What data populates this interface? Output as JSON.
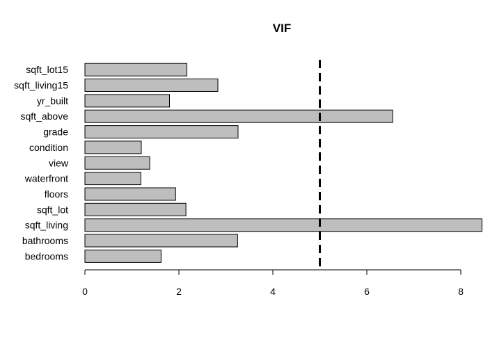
{
  "chart_data": {
    "type": "bar",
    "orientation": "horizontal",
    "title": "VIF",
    "xlabel": "",
    "ylabel": "",
    "categories": [
      "bedrooms",
      "bathrooms",
      "sqft_living",
      "sqft_lot",
      "floors",
      "waterfront",
      "view",
      "condition",
      "grade",
      "sqft_above",
      "yr_built",
      "sqft_living15",
      "sqft_lot15"
    ],
    "values": [
      1.62,
      3.25,
      8.45,
      2.15,
      1.93,
      1.19,
      1.38,
      1.2,
      3.26,
      6.55,
      1.8,
      2.83,
      2.17
    ],
    "xlim": [
      0,
      8.45
    ],
    "xticks": [
      0,
      2,
      4,
      6,
      8
    ],
    "reference_line": {
      "x": 5,
      "style": "dashed",
      "color": "#000000"
    },
    "bar_color": "#bebebe",
    "grid": false,
    "legend": "none"
  }
}
